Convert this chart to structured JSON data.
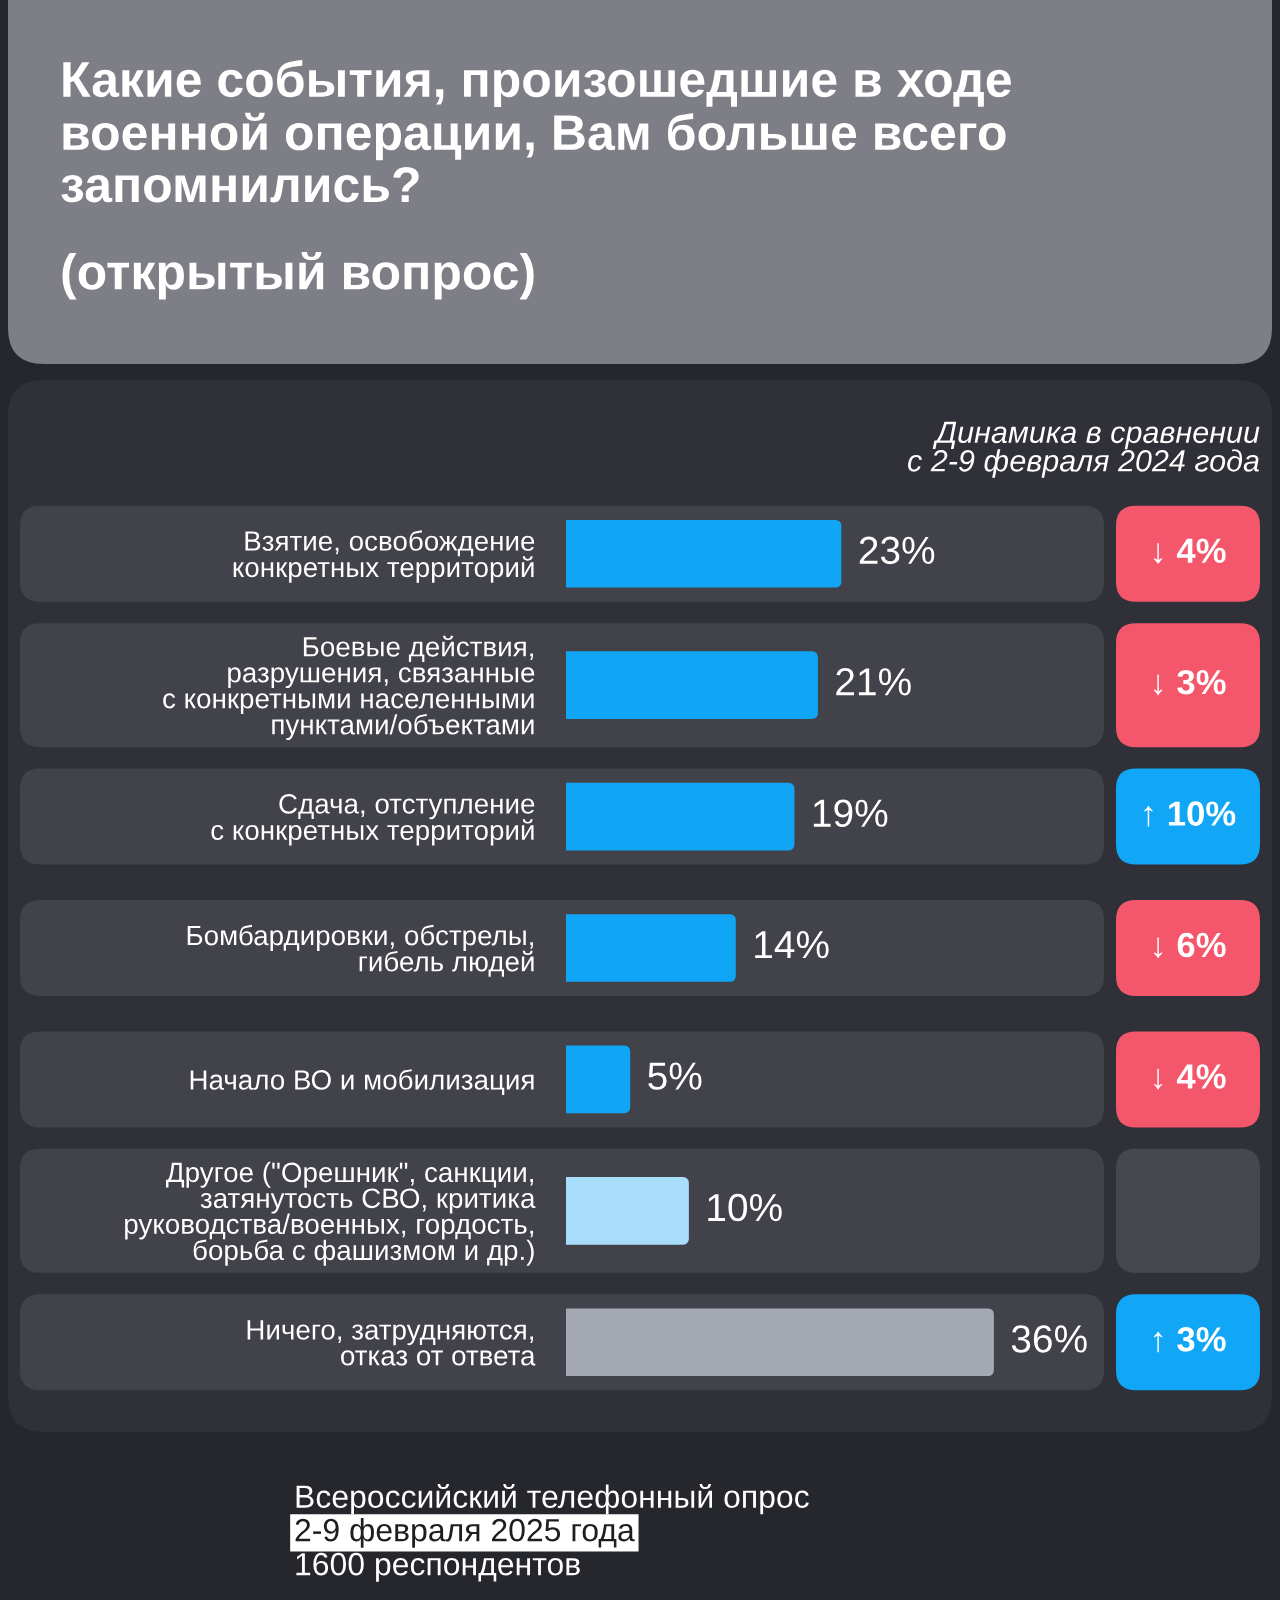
{
  "chart_data": [
    {
      "type": "bar",
      "orientation": "horizontal",
      "title": "Какие события, произошедшие в ходе\nвоенной операции, Вам больше всего\nзапомнились?",
      "subtitle": "(открытый вопрос)",
      "categories": [
        "Взятие, освобождение\nконкретных территорий",
        "Боевые действия,\nразрушения, связанные\nс конкретными населенными\nпунктами/объектами",
        "Сдача, отступление\nс конкретных территорий",
        "Бомбардировки, обстрелы,\nгибель людей",
        "Начало ВО и мобилизация",
        "Другое (\"Орешник\", санкции,\nзатянутость СВО, критика\nруководства/военных, гордость,\nборьба с фашизмом и др.)",
        "Ничего, затрудняются,\nотказ от ответа"
      ],
      "values": [
        23,
        21,
        19,
        14,
        5,
        10,
        36
      ],
      "colors": [
        "#10a5f5",
        "#10a5f5",
        "#10a5f5",
        "#10a5f5",
        "#10a5f5",
        "#a8ddfc",
        "#a5a9b3"
      ],
      "value_labels": [
        "23%",
        "21%",
        "19%",
        "14%",
        "5%",
        "10%",
        "36%"
      ],
      "annotations": [
        "Всероссийский телефонный опрос",
        "2-9 февраля 2025 года",
        "1600 респондентов"
      ]
    },
    {
      "type": "other",
      "title": "Динамика в сравнении\nс 2-9 февраля 2024 года",
      "annotations": [
        "↓ 4%",
        "↓ 3%",
        "↑ 10%",
        "↓ 6%",
        "↓ 4%",
        null,
        "↑ 3%"
      ],
      "colors": [
        "#f4566b",
        "#f4566b",
        "#12a6f6",
        "#f4566b",
        "#f4566b",
        "#47484f",
        "#12a6f6"
      ]
    }
  ]
}
